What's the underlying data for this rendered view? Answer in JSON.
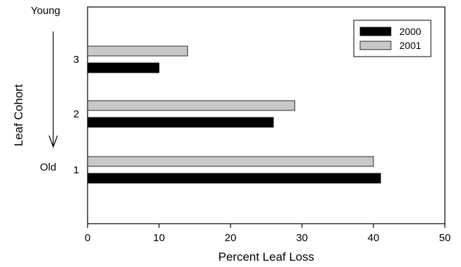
{
  "chart_data": {
    "type": "bar",
    "orientation": "horizontal",
    "categories": [
      "1",
      "2",
      "3"
    ],
    "series": [
      {
        "name": "2000",
        "values": [
          41,
          26,
          10
        ],
        "color": "#000000"
      },
      {
        "name": "2001",
        "values": [
          40,
          29,
          14
        ],
        "color": "#c8c8c8"
      }
    ],
    "xlabel": "Percent Leaf Loss",
    "ylabel": "Leaf Cohort",
    "xlim": [
      0,
      50
    ],
    "xticks": [
      "0",
      "10",
      "20",
      "30",
      "40",
      "50"
    ],
    "annotations": {
      "top": "Young",
      "bottom": "Old"
    },
    "legend_position": "top-right",
    "grid": false
  }
}
